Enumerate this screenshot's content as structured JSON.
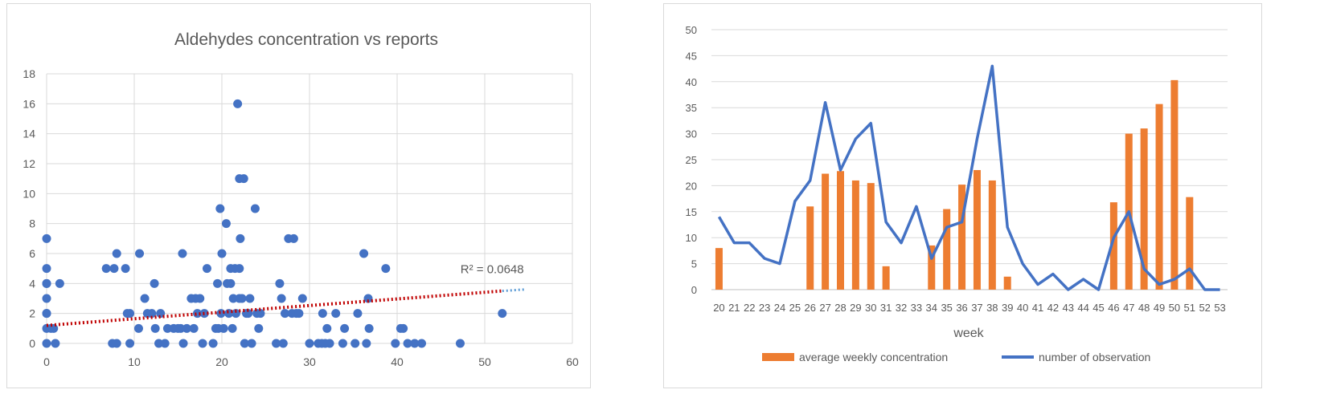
{
  "chart_data": [
    {
      "type": "scatter",
      "title": "Aldehydes concentration vs reports",
      "xlabel": "",
      "ylabel": "",
      "xlim": [
        0,
        60
      ],
      "ylim": [
        0,
        18
      ],
      "xticks": [
        0,
        10,
        20,
        30,
        40,
        50,
        60
      ],
      "yticks": [
        0,
        2,
        4,
        6,
        8,
        10,
        12,
        14,
        16,
        18
      ],
      "grid": true,
      "point_color": "#4472c4",
      "trend_color": "#c00000",
      "trend_extension_color": "#5b9bd5",
      "trendline": {
        "type": "linear",
        "start": [
          0,
          1.2
        ],
        "end": [
          52,
          3.5
        ],
        "extend_to": [
          54.5,
          3.6
        ],
        "label": "R² = 0.0648"
      },
      "points": [
        [
          0,
          7
        ],
        [
          0,
          5
        ],
        [
          0,
          4
        ],
        [
          0,
          4
        ],
        [
          0,
          3
        ],
        [
          0,
          2
        ],
        [
          0,
          2
        ],
        [
          0,
          1
        ],
        [
          0,
          0
        ],
        [
          0.5,
          1
        ],
        [
          0.8,
          1
        ],
        [
          1,
          0
        ],
        [
          1.5,
          4
        ],
        [
          6.8,
          5
        ],
        [
          7.5,
          0
        ],
        [
          7.7,
          5
        ],
        [
          8,
          0
        ],
        [
          8,
          6
        ],
        [
          9,
          5
        ],
        [
          9.2,
          2
        ],
        [
          9.5,
          2
        ],
        [
          9.5,
          0
        ],
        [
          10.5,
          1
        ],
        [
          10.6,
          6
        ],
        [
          11.2,
          3
        ],
        [
          11.5,
          2
        ],
        [
          12,
          2
        ],
        [
          12.3,
          4
        ],
        [
          12.4,
          1
        ],
        [
          12.8,
          0
        ],
        [
          13,
          2
        ],
        [
          13.5,
          0
        ],
        [
          13.8,
          1
        ],
        [
          14.5,
          1
        ],
        [
          15,
          1
        ],
        [
          15.3,
          1
        ],
        [
          15.5,
          6
        ],
        [
          15.6,
          0
        ],
        [
          16,
          1
        ],
        [
          16.5,
          3
        ],
        [
          16.8,
          1
        ],
        [
          17,
          3
        ],
        [
          17.2,
          2
        ],
        [
          17.5,
          3
        ],
        [
          17.8,
          0
        ],
        [
          18,
          2
        ],
        [
          18.3,
          5
        ],
        [
          19,
          0
        ],
        [
          19.3,
          1
        ],
        [
          19.5,
          4
        ],
        [
          19.6,
          1
        ],
        [
          19.8,
          9
        ],
        [
          19.9,
          2
        ],
        [
          20,
          6
        ],
        [
          20.2,
          1
        ],
        [
          20.5,
          8
        ],
        [
          20.6,
          4
        ],
        [
          20.8,
          2
        ],
        [
          21,
          4
        ],
        [
          21,
          5
        ],
        [
          21.2,
          1
        ],
        [
          21.3,
          3
        ],
        [
          21.5,
          5
        ],
        [
          21.6,
          2
        ],
        [
          21.8,
          16
        ],
        [
          22,
          11
        ],
        [
          22,
          3
        ],
        [
          22,
          5
        ],
        [
          22.1,
          7
        ],
        [
          22.3,
          3
        ],
        [
          22.5,
          11
        ],
        [
          22.6,
          0
        ],
        [
          22.8,
          2
        ],
        [
          23,
          2
        ],
        [
          23.2,
          3
        ],
        [
          23.4,
          0
        ],
        [
          23.8,
          9
        ],
        [
          24,
          2
        ],
        [
          24.2,
          1
        ],
        [
          24.4,
          2
        ],
        [
          26.2,
          0
        ],
        [
          26.6,
          4
        ],
        [
          26.8,
          3
        ],
        [
          27,
          0
        ],
        [
          27.2,
          2
        ],
        [
          27.6,
          7
        ],
        [
          28,
          2
        ],
        [
          28.2,
          7
        ],
        [
          28.5,
          2
        ],
        [
          28.8,
          2
        ],
        [
          29.2,
          3
        ],
        [
          30,
          0
        ],
        [
          31,
          0
        ],
        [
          31.4,
          0
        ],
        [
          31.5,
          2
        ],
        [
          31.8,
          0
        ],
        [
          32,
          1
        ],
        [
          32.3,
          0
        ],
        [
          33,
          2
        ],
        [
          33.8,
          0
        ],
        [
          34,
          1
        ],
        [
          35.2,
          0
        ],
        [
          35.5,
          2
        ],
        [
          36.2,
          6
        ],
        [
          36.5,
          0
        ],
        [
          36.7,
          3
        ],
        [
          36.8,
          1
        ],
        [
          38.7,
          5
        ],
        [
          39.8,
          0
        ],
        [
          40.4,
          1
        ],
        [
          40.7,
          1
        ],
        [
          41.2,
          0
        ],
        [
          42,
          0
        ],
        [
          42.8,
          0
        ],
        [
          47.2,
          0
        ],
        [
          52,
          2
        ]
      ]
    },
    {
      "type": "bar+line",
      "title": "",
      "xlabel": "week",
      "ylabel": "",
      "ylim": [
        0,
        50
      ],
      "yticks": [
        0,
        5,
        10,
        15,
        20,
        25,
        30,
        35,
        40,
        45,
        50
      ],
      "grid": true,
      "categories": [
        "20",
        "21",
        "22",
        "23",
        "24",
        "25",
        "26",
        "27",
        "28",
        "29",
        "30",
        "31",
        "32",
        "33",
        "34",
        "35",
        "36",
        "37",
        "38",
        "39",
        "40",
        "41",
        "42",
        "43",
        "44",
        "45",
        "46",
        "47",
        "48",
        "49",
        "50",
        "51",
        "52",
        "53"
      ],
      "series": [
        {
          "name": "average weekly concentration",
          "kind": "bar",
          "color": "#ed7d31",
          "values": [
            8,
            0,
            0,
            0,
            0,
            0,
            16,
            22.3,
            22.8,
            21,
            20.5,
            4.5,
            0,
            0,
            8.5,
            15.5,
            20.2,
            23,
            21,
            2.5,
            0,
            0,
            0,
            0,
            0,
            0,
            16.8,
            30,
            31,
            35.7,
            40.3,
            17.8,
            0,
            0
          ]
        },
        {
          "name": "number of observation",
          "kind": "line",
          "color": "#4472c4",
          "values": [
            14,
            9,
            9,
            6,
            5,
            17,
            21,
            36,
            23,
            29,
            32,
            13,
            9,
            16,
            6,
            12,
            13,
            29,
            43,
            12,
            5,
            1,
            3,
            0,
            2,
            0,
            10,
            15,
            4,
            1,
            2,
            4,
            0,
            0
          ]
        }
      ],
      "legend": "bottom"
    }
  ]
}
